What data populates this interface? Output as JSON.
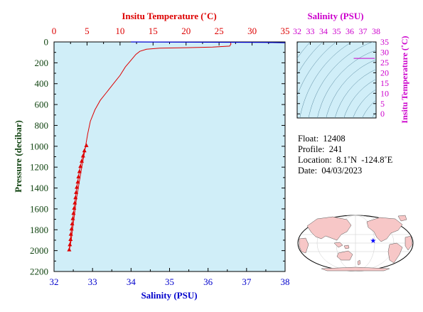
{
  "colors": {
    "temperature": "#dd0000",
    "salinity": "#0000cc",
    "ts_diagram": "#cc00cc",
    "pressure_axis": "#114411",
    "plot_background": "#d0eef8",
    "map_land": "#f7c7c7",
    "map_ocean": "#ffffff",
    "float_marker": "#0000ff"
  },
  "info": {
    "float_label": "Float:",
    "float": "12408",
    "profile_label": "Profile:",
    "profile": "241",
    "location_label": "Location:",
    "location": "8.1˚N  -124.8˚E",
    "date_label": "Date:",
    "date": "04/03/2023"
  },
  "chart_data": [
    {
      "type": "line",
      "title": "",
      "top_axis_label": "Insitu Temperature (˚C)",
      "bottom_axis_label": "Salinity (PSU)",
      "ylabel": "Pressure (decibar)",
      "temperature_range": [
        0,
        35
      ],
      "temperature_ticks": [
        0,
        5,
        10,
        15,
        20,
        25,
        30,
        35
      ],
      "salinity_range": [
        32,
        38
      ],
      "salinity_ticks": [
        32,
        33,
        34,
        35,
        36,
        37,
        38
      ],
      "pressure_range": [
        0,
        2200
      ],
      "pressure_reversed": true,
      "pressure_ticks": [
        0,
        200,
        400,
        600,
        800,
        1000,
        1200,
        1400,
        1600,
        1800,
        2000,
        2200
      ],
      "series": [
        {
          "variable": "temperature",
          "marker": "none",
          "points": [
            [
              26.7,
              0
            ],
            [
              26.8,
              20
            ],
            [
              26.6,
              40
            ],
            [
              24,
              50
            ],
            [
              20,
              55
            ],
            [
              16,
              60
            ],
            [
              14,
              70
            ],
            [
              13,
              90
            ],
            [
              12.4,
              120
            ],
            [
              11.6,
              180
            ],
            [
              10.8,
              240
            ],
            [
              10,
              320
            ],
            [
              9,
              400
            ],
            [
              8,
              480
            ],
            [
              7,
              560
            ],
            [
              6.2,
              650
            ],
            [
              5.5,
              760
            ],
            [
              5.1,
              880
            ],
            [
              4.8,
              990
            ],
            [
              4.5,
              1100
            ],
            [
              4.2,
              1200
            ],
            [
              3.8,
              1350
            ],
            [
              3.4,
              1500
            ],
            [
              3.0,
              1700
            ],
            [
              2.6,
              1900
            ],
            [
              2.3,
              2000
            ]
          ]
        },
        {
          "variable": "salinity",
          "marker": "none",
          "points": [
            [
              34.0,
              0
            ],
            [
              37.5,
              5
            ],
            [
              38.0,
              8
            ]
          ]
        },
        {
          "variable": "temperature",
          "marker": "triangle",
          "points": [
            [
              4.9,
              990
            ],
            [
              4.6,
              1040
            ],
            [
              4.4,
              1090
            ],
            [
              4.2,
              1140
            ],
            [
              4.0,
              1190
            ],
            [
              3.85,
              1240
            ],
            [
              3.7,
              1290
            ],
            [
              3.6,
              1340
            ],
            [
              3.45,
              1390
            ],
            [
              3.35,
              1440
            ],
            [
              3.25,
              1490
            ],
            [
              3.15,
              1540
            ],
            [
              3.05,
              1590
            ],
            [
              2.95,
              1640
            ],
            [
              2.85,
              1690
            ],
            [
              2.75,
              1740
            ],
            [
              2.65,
              1790
            ],
            [
              2.55,
              1840
            ],
            [
              2.5,
              1890
            ],
            [
              2.4,
              1940
            ],
            [
              2.3,
              1990
            ]
          ]
        }
      ]
    },
    {
      "type": "line",
      "title": "",
      "xlabel": "Salinity (PSU)",
      "ylabel": "Insitu Temperature (˚C)",
      "xlim": [
        32,
        38
      ],
      "ylim": [
        -2,
        35
      ],
      "x_ticks": [
        32,
        33,
        34,
        35,
        36,
        37,
        38
      ],
      "y_ticks": [
        0,
        5,
        10,
        15,
        20,
        25,
        30,
        35
      ],
      "series": [
        {
          "points": [
            [
              36.3,
              27
            ],
            [
              37.9,
              27
            ]
          ]
        }
      ]
    }
  ]
}
